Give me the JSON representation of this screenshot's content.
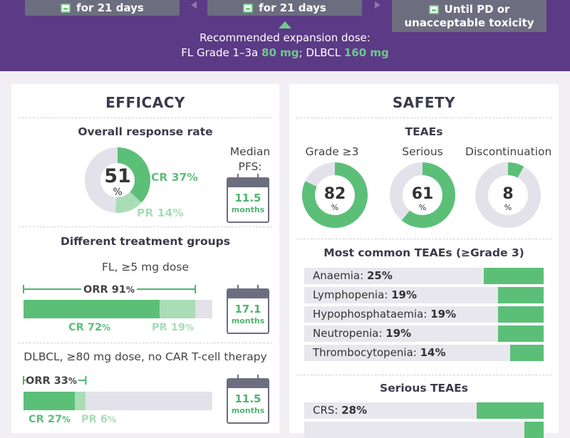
{
  "header": {
    "box1": "for 21 days",
    "box2": "for 21 days",
    "box3_line1": "Until PD or",
    "box3_line2": "unacceptable toxicity",
    "dose_line1": "Recommended expansion dose:",
    "dose_fl_prefix": "FL Grade 1–3a ",
    "dose_fl_value": "80 mg",
    "dose_sep": "; DLBCL ",
    "dose_dlbcl_value": "160 mg"
  },
  "efficacy": {
    "title": "EFFICACY",
    "orr_heading": "Overall response rate",
    "orr_value": 51,
    "orr_value_text": "51",
    "orr_unit": "%",
    "cr_label": "CR 37%",
    "cr_value": 37,
    "pr_label": "PR 14%",
    "pr_value": 14,
    "pfs_label_line1": "Median",
    "pfs_label_line2": "PFS:",
    "pfs_value": "11.5",
    "pfs_unit": "months",
    "groups_heading": "Different treatment groups",
    "fl": {
      "label": "FL, ≥5 mg dose",
      "orr_text": "ORR 91",
      "orr_pct": "%",
      "orr": 91,
      "cr": 72,
      "pr": 19,
      "cr_text": "CR 72",
      "pr_text": "PR 19",
      "pct": "%",
      "months_value": "17.1",
      "months_unit": "months"
    },
    "dlbcl": {
      "label": "DLBCL, ≥80 mg dose, no CAR T-cell therapy",
      "orr_text": "ORR 33",
      "orr_pct": "%",
      "orr": 33,
      "cr": 27,
      "pr": 6,
      "cr_text": "CR 27",
      "pr_text": "PR 6",
      "pct": "%",
      "months_value": "11.5",
      "months_unit": "months"
    }
  },
  "safety": {
    "title": "SAFETY",
    "teaes_heading": "TEAEs",
    "donuts": [
      {
        "label": "Grade ≥3",
        "value": 82,
        "text": "82",
        "unit": "%"
      },
      {
        "label": "Serious",
        "value": 61,
        "text": "61",
        "unit": "%"
      },
      {
        "label": "Discontinuation",
        "value": 8,
        "text": "8",
        "unit": "%"
      }
    ],
    "common_heading": "Most common TEAEs (≥Grade 3)",
    "common": [
      {
        "name": "Anaemia: ",
        "pct": "25%",
        "value": 25
      },
      {
        "name": "Lymphopenia: ",
        "pct": "19%",
        "value": 19
      },
      {
        "name": "Hypophosphataemia: ",
        "pct": "19%",
        "value": 19
      },
      {
        "name": "Neutropenia: ",
        "pct": "19%",
        "value": 19
      },
      {
        "name": "Thrombocytopenia: ",
        "pct": "14%",
        "value": 14
      }
    ],
    "serious_heading": "Serious TEAEs",
    "serious": [
      {
        "name": "CRS: ",
        "pct": "28%",
        "value": 28
      }
    ]
  },
  "colors": {
    "purple": "#5b3a86",
    "green": "#5cbf78",
    "light_green": "#a8ddb6",
    "grey_track": "#e3e2ea"
  }
}
